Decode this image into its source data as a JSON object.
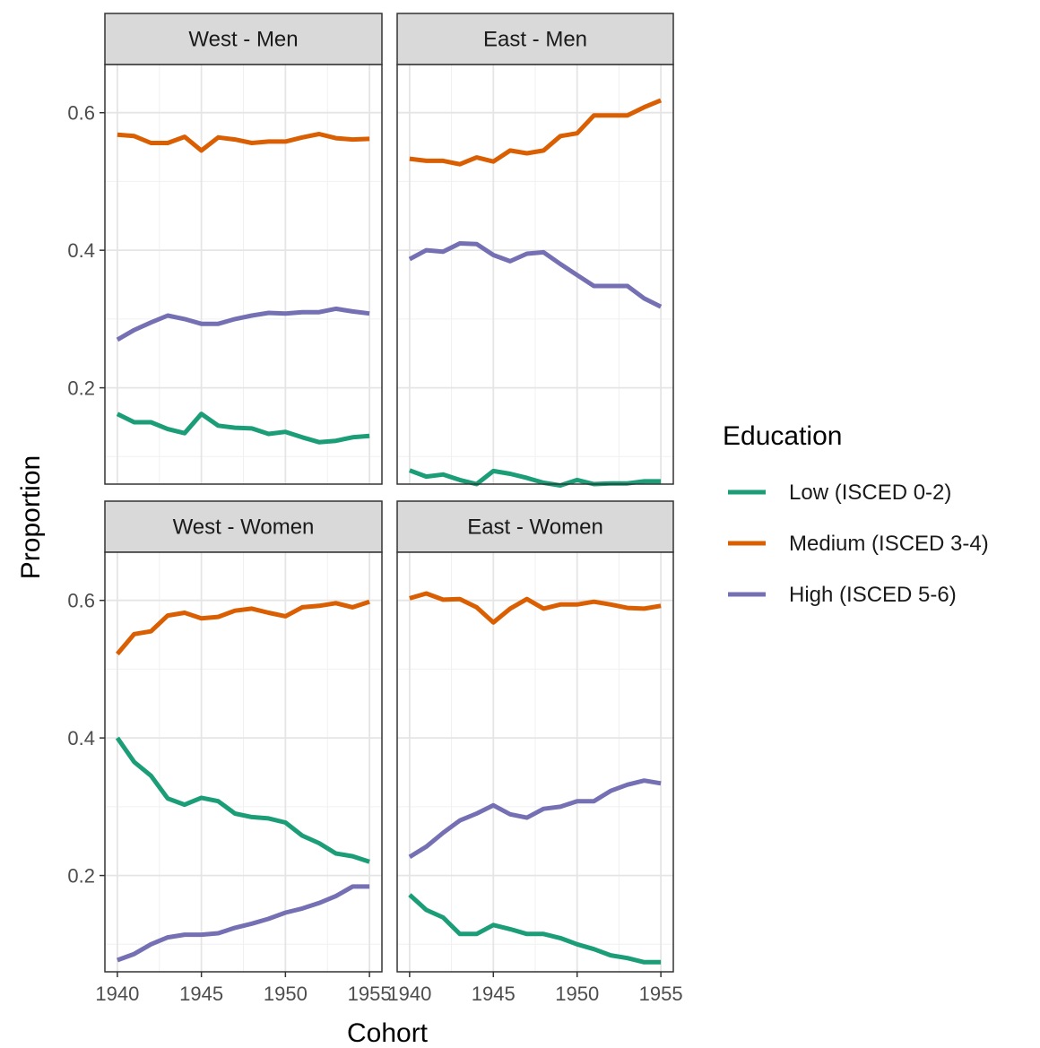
{
  "chart_data": {
    "type": "line",
    "xlabel": "Cohort",
    "ylabel": "Proportion",
    "xlim": [
      1940,
      1955
    ],
    "ylim": [
      0.06,
      0.67
    ],
    "x_ticks": [
      1940,
      1945,
      1950,
      1955
    ],
    "x_tick_labels": [
      "1940",
      "1945",
      "1950",
      "1955"
    ],
    "y_ticks": [
      0.2,
      0.4,
      0.6
    ],
    "y_tick_labels": [
      "0.2",
      "0.4",
      "0.6"
    ],
    "grid": true,
    "legend": {
      "title": "Education",
      "placement": "right",
      "entries": [
        {
          "label": "Low (ISCED 0-2)",
          "color": "#1b9e77"
        },
        {
          "label": "Medium (ISCED 3-4)",
          "color": "#d95f02"
        },
        {
          "label": "High (ISCED 5-6)",
          "color": "#7570b3"
        }
      ]
    },
    "x": [
      1940,
      1941,
      1942,
      1943,
      1944,
      1945,
      1946,
      1947,
      1948,
      1949,
      1950,
      1951,
      1952,
      1953,
      1954,
      1955
    ],
    "panels": [
      {
        "label": "West - Men",
        "series": [
          {
            "name": "Low (ISCED 0-2)",
            "color": "#1b9e77",
            "values": [
              0.162,
              0.15,
              0.15,
              0.14,
              0.134,
              0.162,
              0.145,
              0.142,
              0.141,
              0.133,
              0.136,
              0.128,
              0.121,
              0.123,
              0.128,
              0.13
            ]
          },
          {
            "name": "Medium (ISCED 3-4)",
            "color": "#d95f02",
            "values": [
              0.568,
              0.566,
              0.556,
              0.556,
              0.565,
              0.545,
              0.564,
              0.561,
              0.556,
              0.558,
              0.558,
              0.564,
              0.569,
              0.563,
              0.561,
              0.562
            ]
          },
          {
            "name": "High (ISCED 5-6)",
            "color": "#7570b3",
            "values": [
              0.27,
              0.284,
              0.295,
              0.305,
              0.3,
              0.293,
              0.293,
              0.3,
              0.305,
              0.309,
              0.308,
              0.31,
              0.31,
              0.315,
              0.311,
              0.308
            ]
          }
        ]
      },
      {
        "label": "East - Men",
        "series": [
          {
            "name": "Low (ISCED 0-2)",
            "color": "#1b9e77",
            "values": [
              0.08,
              0.071,
              0.074,
              0.066,
              0.06,
              0.079,
              0.075,
              0.069,
              0.062,
              0.058,
              0.066,
              0.06,
              0.061,
              0.061,
              0.064,
              0.064
            ]
          },
          {
            "name": "Medium (ISCED 3-4)",
            "color": "#d95f02",
            "values": [
              0.533,
              0.53,
              0.53,
              0.525,
              0.535,
              0.529,
              0.545,
              0.541,
              0.545,
              0.566,
              0.57,
              0.596,
              0.596,
              0.596,
              0.608,
              0.618
            ]
          },
          {
            "name": "High (ISCED 5-6)",
            "color": "#7570b3",
            "values": [
              0.387,
              0.4,
              0.398,
              0.41,
              0.409,
              0.393,
              0.384,
              0.395,
              0.397,
              0.38,
              0.364,
              0.348,
              0.348,
              0.348,
              0.33,
              0.318
            ]
          }
        ]
      },
      {
        "label": "West - Women",
        "series": [
          {
            "name": "Low (ISCED 0-2)",
            "color": "#1b9e77",
            "values": [
              0.4,
              0.365,
              0.345,
              0.312,
              0.303,
              0.313,
              0.308,
              0.29,
              0.285,
              0.283,
              0.277,
              0.258,
              0.247,
              0.232,
              0.228,
              0.22
            ]
          },
          {
            "name": "Medium (ISCED 3-4)",
            "color": "#d95f02",
            "values": [
              0.522,
              0.551,
              0.555,
              0.578,
              0.582,
              0.574,
              0.576,
              0.585,
              0.588,
              0.582,
              0.577,
              0.59,
              0.592,
              0.596,
              0.59,
              0.598
            ]
          },
          {
            "name": "High (ISCED 5-6)",
            "color": "#7570b3",
            "values": [
              0.077,
              0.086,
              0.1,
              0.11,
              0.114,
              0.114,
              0.116,
              0.124,
              0.13,
              0.137,
              0.146,
              0.152,
              0.16,
              0.17,
              0.184,
              0.184
            ]
          }
        ]
      },
      {
        "label": "East - Women",
        "series": [
          {
            "name": "Low (ISCED 0-2)",
            "color": "#1b9e77",
            "values": [
              0.172,
              0.15,
              0.139,
              0.115,
              0.115,
              0.128,
              0.122,
              0.115,
              0.115,
              0.109,
              0.1,
              0.093,
              0.084,
              0.08,
              0.074,
              0.074
            ]
          },
          {
            "name": "Medium (ISCED 3-4)",
            "color": "#d95f02",
            "values": [
              0.603,
              0.61,
              0.601,
              0.602,
              0.59,
              0.568,
              0.588,
              0.602,
              0.588,
              0.594,
              0.594,
              0.598,
              0.594,
              0.589,
              0.588,
              0.592
            ]
          },
          {
            "name": "High (ISCED 5-6)",
            "color": "#7570b3",
            "values": [
              0.227,
              0.242,
              0.262,
              0.28,
              0.29,
              0.302,
              0.289,
              0.284,
              0.297,
              0.3,
              0.308,
              0.308,
              0.323,
              0.332,
              0.338,
              0.334
            ]
          }
        ]
      }
    ]
  }
}
